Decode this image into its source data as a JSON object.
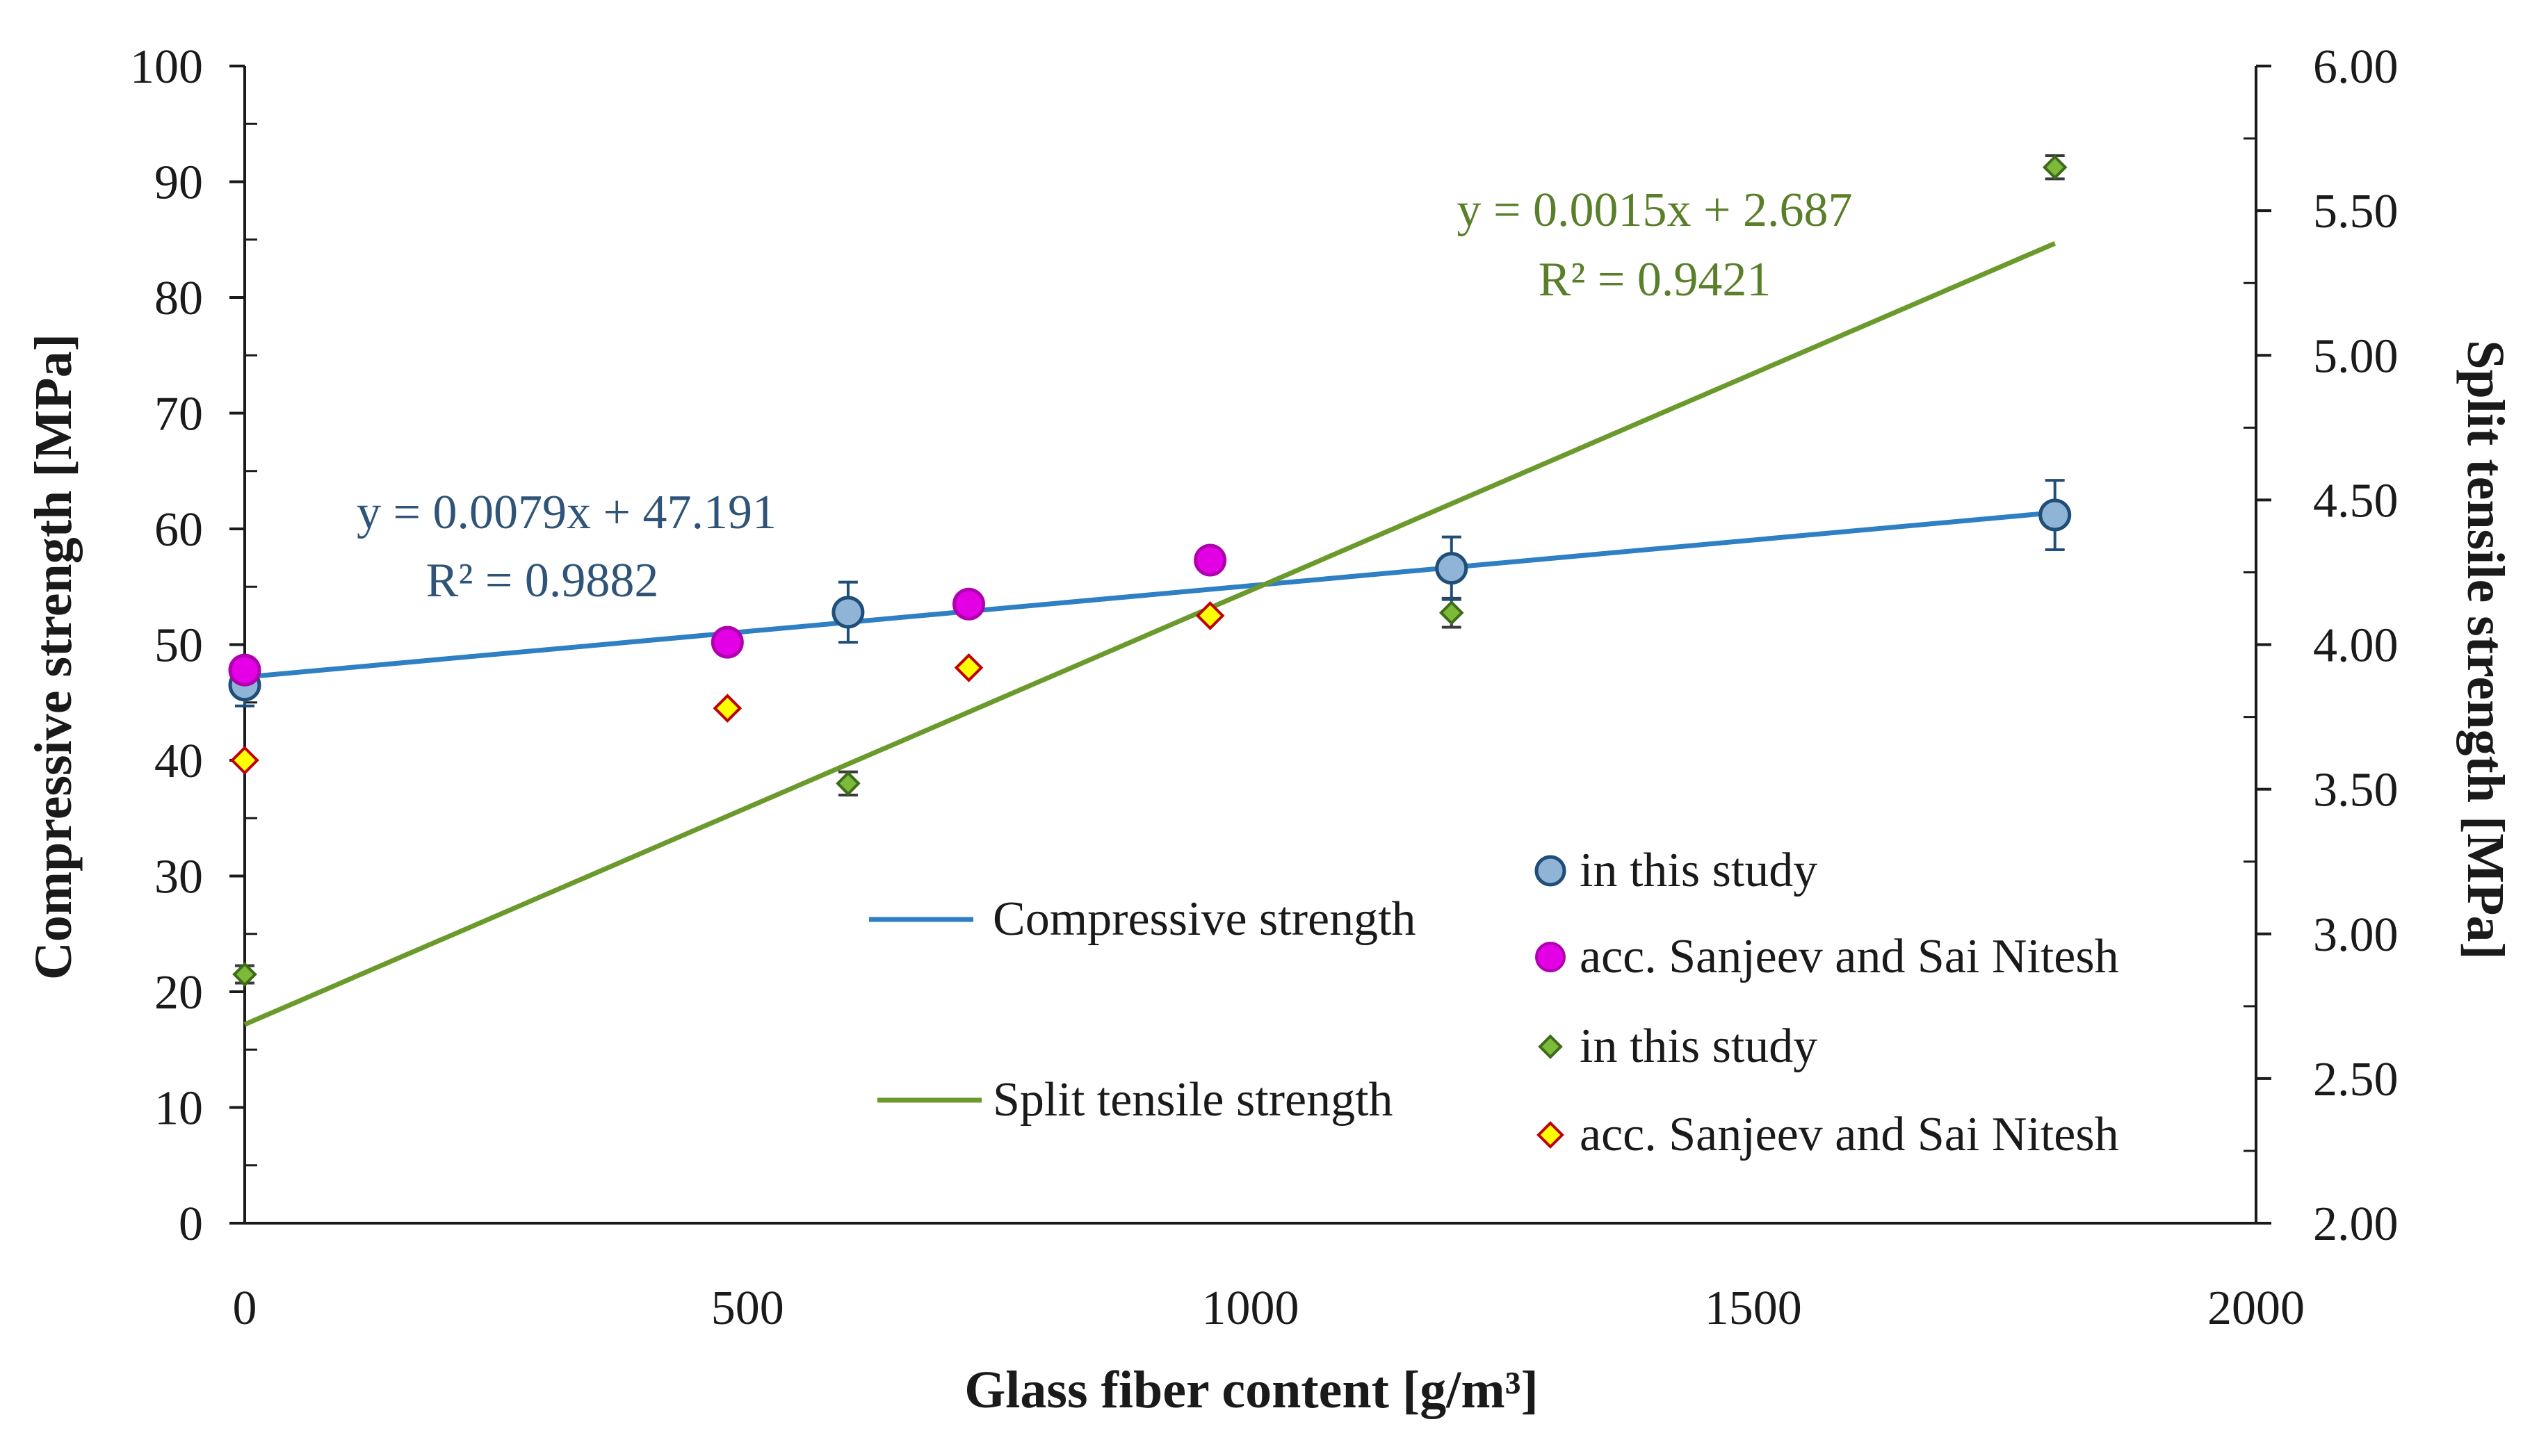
{
  "chart_data": {
    "type": "scatter",
    "xlabel": "Glass fiber content [g/m³]",
    "ylabel_left": "Compressive strength [MPa]",
    "ylabel_right": "Split tensile strength [MPa]",
    "xlim": [
      0,
      2000
    ],
    "ylim_left": [
      0,
      100
    ],
    "ylim_right": [
      2.0,
      6.0
    ],
    "x_ticks": [
      "0",
      "500",
      "1000",
      "1500",
      "2000"
    ],
    "y_left_ticks": [
      "0",
      "10",
      "20",
      "30",
      "40",
      "50",
      "60",
      "70",
      "80",
      "90",
      "100"
    ],
    "y_right_ticks": [
      "2.00",
      "2.50",
      "3.00",
      "3.50",
      "4.00",
      "4.50",
      "5.00",
      "5.50",
      "6.00"
    ],
    "grid": false,
    "legend_position": "lower-right",
    "trendlines": [
      {
        "name": "Compressive strength",
        "axis": "left",
        "slope": 0.0079,
        "intercept": 47.191,
        "x_range": [
          0,
          1800
        ],
        "equation": "y = 0.0079x + 47.191",
        "r2": "R² = 0.9882",
        "color": "#2e7fc4",
        "label_color": "#2f5478"
      },
      {
        "name": "Split tensile strength",
        "axis": "right",
        "slope": 0.0015,
        "intercept": 2.687,
        "x_range": [
          0,
          1800
        ],
        "equation": "y = 0.0015x + 2.687",
        "r2": "R² = 0.9421",
        "color": "#6b9a2c",
        "label_color": "#5a7f2a"
      }
    ],
    "series": [
      {
        "name": "in this study",
        "axis": "left",
        "marker": "circle",
        "fill": "#8fb4d6",
        "stroke": "#1f4e79",
        "error_color": "#1f4e79",
        "points": [
          {
            "x": 0,
            "y": 46.5,
            "err": 1.8
          },
          {
            "x": 600,
            "y": 52.8,
            "err": 2.6
          },
          {
            "x": 1200,
            "y": 56.6,
            "err": 2.7
          },
          {
            "x": 1800,
            "y": 61.2,
            "err": 3.0
          }
        ]
      },
      {
        "name": "acc. Sanjeev and Sai Nitesh",
        "axis": "left",
        "marker": "circle",
        "fill": "#e400e4",
        "stroke": "#b000b0",
        "points": [
          {
            "x": 0,
            "y": 47.8
          },
          {
            "x": 480,
            "y": 50.2
          },
          {
            "x": 720,
            "y": 53.5
          },
          {
            "x": 960,
            "y": 57.3
          }
        ]
      },
      {
        "name": "in this study",
        "axis": "right",
        "marker": "diamond",
        "fill": "#7cbb3a",
        "stroke": "#3f6b1a",
        "error_color": "#3a3a3a",
        "points": [
          {
            "x": 0,
            "y": 2.86,
            "err": 0.03
          },
          {
            "x": 600,
            "y": 3.52,
            "err": 0.04
          },
          {
            "x": 1200,
            "y": 4.11,
            "err": 0.05
          },
          {
            "x": 1800,
            "y": 5.65,
            "err": 0.04
          }
        ]
      },
      {
        "name": "acc. Sanjeev and Sai Nitesh",
        "axis": "right",
        "marker": "diamond",
        "fill": "#ffff00",
        "stroke": "#c00000",
        "points": [
          {
            "x": 0,
            "y": 3.6
          },
          {
            "x": 480,
            "y": 3.78
          },
          {
            "x": 720,
            "y": 3.92
          },
          {
            "x": 960,
            "y": 4.1
          }
        ]
      }
    ]
  }
}
